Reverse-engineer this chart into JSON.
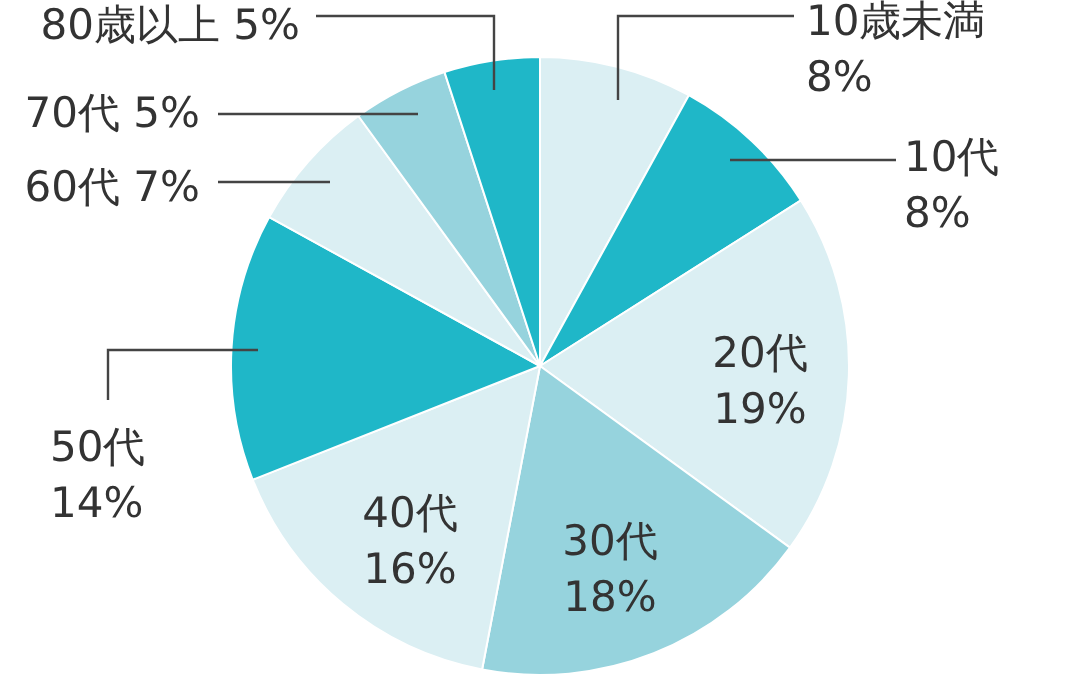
{
  "chart_data": {
    "type": "pie",
    "categories": [
      "10歳未満",
      "10代",
      "20代",
      "30代",
      "40代",
      "50代",
      "60代",
      "70代",
      "80歳以上"
    ],
    "values": [
      8,
      8,
      19,
      18,
      16,
      14,
      7,
      5,
      5
    ],
    "value_labels": [
      "8%",
      "8%",
      "19%",
      "18%",
      "16%",
      "14%",
      "7%",
      "5%",
      "5%"
    ],
    "colors": [
      "#dbeff3",
      "#1fb7c8",
      "#dbeff3",
      "#96d3dd",
      "#dbeff3",
      "#1fb7c8",
      "#dbeff3",
      "#96d3dd",
      "#1fb7c8"
    ],
    "legend": false
  }
}
